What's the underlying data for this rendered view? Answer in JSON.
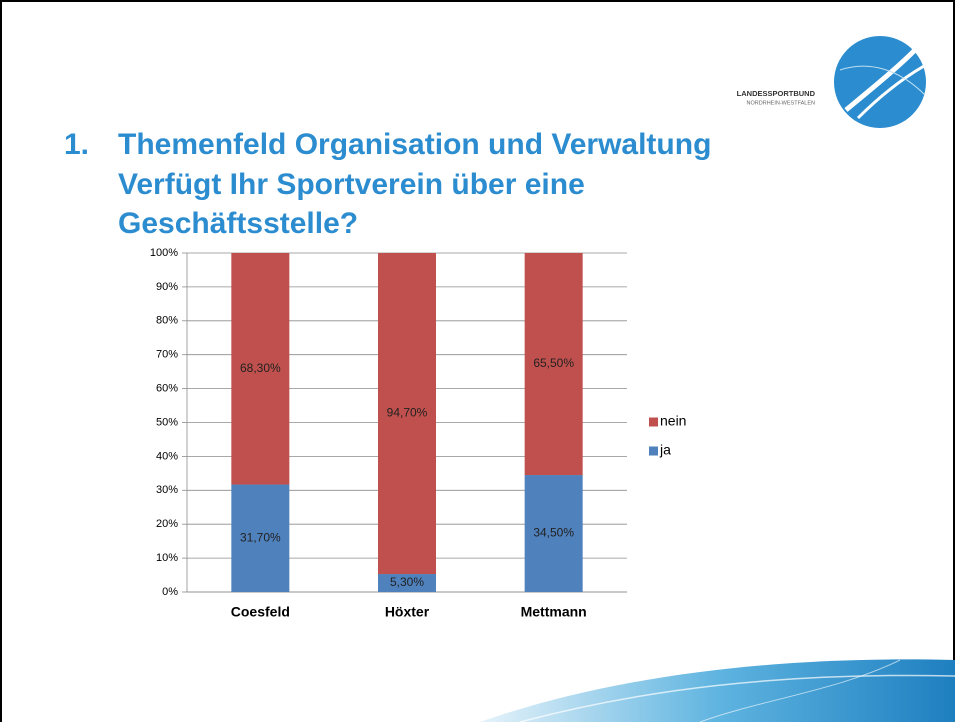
{
  "slide": {
    "number": "1.",
    "title_lines": [
      "Themenfeld Organisation und Verwaltung",
      "Verfügt Ihr Sportverein über eine",
      "Geschäftsstelle?"
    ]
  },
  "logo": {
    "name": "LANDESSPORTBUND",
    "region": "NORDRHEIN-WESTFALEN"
  },
  "chart_data": {
    "type": "stacked_bar",
    "categories": [
      "Coesfeld",
      "Höxter",
      "Mettmann"
    ],
    "series": [
      {
        "name": "ja",
        "color": "#4f81bd",
        "values": [
          31.7,
          5.3,
          34.5
        ],
        "value_labels": [
          "31,70%",
          "5,30%",
          "34,50%"
        ]
      },
      {
        "name": "nein",
        "color": "#c0504d",
        "values": [
          68.3,
          94.7,
          65.5
        ],
        "value_labels": [
          "68,30%",
          "94,70%",
          "65,50%"
        ]
      }
    ],
    "ylim": [
      0,
      100
    ],
    "yticks": [
      {
        "value": 0,
        "label": "0%"
      },
      {
        "value": 10,
        "label": "10%"
      },
      {
        "value": 20,
        "label": "20%"
      },
      {
        "value": 30,
        "label": "30%"
      },
      {
        "value": 40,
        "label": "40%"
      },
      {
        "value": 50,
        "label": "50%"
      },
      {
        "value": 60,
        "label": "60%"
      },
      {
        "value": 70,
        "label": "70%"
      },
      {
        "value": 80,
        "label": "80%"
      },
      {
        "value": 90,
        "label": "90%"
      },
      {
        "value": 100,
        "label": "100%"
      }
    ],
    "grid": true,
    "legend": "right"
  }
}
